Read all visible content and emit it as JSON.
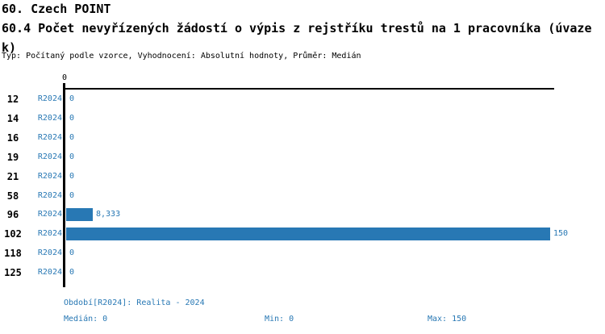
{
  "header": {
    "title": "60. Czech POINT",
    "subtitle": "60.4 Počet nevyřízených žádostí o výpis z rejstříku trestů na 1 pracovníka (úvazek)",
    "meta": "Typ: Počítaný podle vzorce, Vyhodnocení: Absolutní hodnoty, Průměr: Medián"
  },
  "chart_data": {
    "type": "bar",
    "orientation": "horizontal",
    "title": "60.4 Počet nevyřízených žádostí o výpis z rejstříku trestů na 1 pracovníka (úvazek)",
    "categories": [
      "12",
      "14",
      "16",
      "19",
      "21",
      "58",
      "96",
      "102",
      "118",
      "125"
    ],
    "series": [
      {
        "name": "R2024",
        "values": [
          0,
          0,
          0,
          0,
          0,
          0,
          8.333,
          150,
          0,
          0
        ]
      }
    ],
    "value_labels": [
      "0",
      "0",
      "0",
      "0",
      "0",
      "0",
      "8,333",
      "150",
      "0",
      "0"
    ],
    "xaxis_tick": "0",
    "xlim": [
      0,
      152
    ],
    "grid": false,
    "legend_position": "none",
    "bar_color": "#2878b4",
    "text_color": "#2878b4",
    "stats": {
      "median": 0,
      "min": 0,
      "max": 150
    }
  },
  "footer": {
    "period": "Období[R2024]: Realita - 2024",
    "median": "Medián: 0",
    "min": "Min: 0",
    "max": "Max: 150"
  }
}
